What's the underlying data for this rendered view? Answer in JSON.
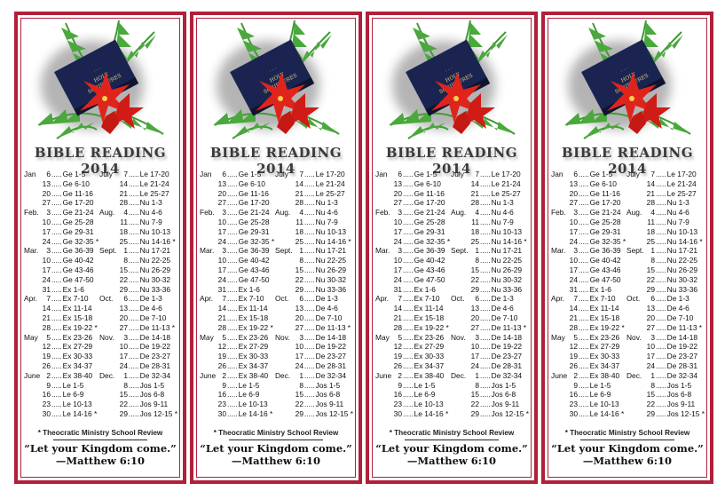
{
  "bookmark": {
    "title": "BIBLE  READING 2014",
    "book_cover_text": "HOLY SCRIPTURES",
    "left_column": [
      {
        "month": "Jan",
        "day": "6",
        "reading": "Ge 1-5"
      },
      {
        "month": "",
        "day": "13",
        "reading": "Ge 6-10"
      },
      {
        "month": "",
        "day": "20",
        "reading": "Ge 11-16"
      },
      {
        "month": "",
        "day": "27",
        "reading": "Ge 17-20"
      },
      {
        "month": "Feb.",
        "day": "3",
        "reading": "Ge 21-24"
      },
      {
        "month": "",
        "day": "10",
        "reading": "Ge 25-28"
      },
      {
        "month": "",
        "day": "17",
        "reading": "Ge 29-31"
      },
      {
        "month": "",
        "day": "24",
        "reading": "Ge 32-35 *"
      },
      {
        "month": "Mar.",
        "day": "3",
        "reading": "Ge 36-39"
      },
      {
        "month": "",
        "day": "10",
        "reading": "Ge 40-42"
      },
      {
        "month": "",
        "day": "17",
        "reading": "Ge 43-46"
      },
      {
        "month": "",
        "day": "24",
        "reading": "Ge 47-50"
      },
      {
        "month": "",
        "day": "31",
        "reading": "Ex 1-6"
      },
      {
        "month": "Apr.",
        "day": "7",
        "reading": "Ex 7-10"
      },
      {
        "month": "",
        "day": "14",
        "reading": "Ex 11-14"
      },
      {
        "month": "",
        "day": "21",
        "reading": "Ex 15-18"
      },
      {
        "month": "",
        "day": "28",
        "reading": "Ex 19-22 *"
      },
      {
        "month": "May",
        "day": "5",
        "reading": "Ex 23-26"
      },
      {
        "month": "",
        "day": "12",
        "reading": "Ex 27-29"
      },
      {
        "month": "",
        "day": "19",
        "reading": "Ex 30-33"
      },
      {
        "month": "",
        "day": "26",
        "reading": "Ex 34-37"
      },
      {
        "month": "June",
        "day": "2",
        "reading": "Ex 38-40"
      },
      {
        "month": "",
        "day": "9",
        "reading": "Le 1-5"
      },
      {
        "month": "",
        "day": "16",
        "reading": "Le 6-9"
      },
      {
        "month": "",
        "day": "23",
        "reading": "Le 10-13"
      },
      {
        "month": "",
        "day": "30",
        "reading": "Le 14-16 *"
      }
    ],
    "right_column": [
      {
        "month": "July",
        "day": "7",
        "reading": "Le 17-20"
      },
      {
        "month": "",
        "day": "14",
        "reading": "Le 21-24"
      },
      {
        "month": "",
        "day": "21",
        "reading": "Le 25-27"
      },
      {
        "month": "",
        "day": "28",
        "reading": "Nu 1-3"
      },
      {
        "month": "Aug.",
        "day": "4",
        "reading": "Nu 4-6"
      },
      {
        "month": "",
        "day": "11",
        "reading": "Nu 7-9"
      },
      {
        "month": "",
        "day": "18",
        "reading": "Nu 10-13"
      },
      {
        "month": "",
        "day": "25",
        "reading": "Nu 14-16 *"
      },
      {
        "month": "Sept.",
        "day": "1",
        "reading": "Nu 17-21"
      },
      {
        "month": "",
        "day": "8",
        "reading": "Nu 22-25"
      },
      {
        "month": "",
        "day": "15",
        "reading": "Nu 26-29"
      },
      {
        "month": "",
        "day": "22",
        "reading": "Nu 30-32"
      },
      {
        "month": "",
        "day": "29",
        "reading": "Nu 33-36"
      },
      {
        "month": "Oct.",
        "day": "6",
        "reading": "De 1-3"
      },
      {
        "month": "",
        "day": "13",
        "reading": "De 4-6"
      },
      {
        "month": "",
        "day": "20",
        "reading": "De 7-10"
      },
      {
        "month": "",
        "day": "27",
        "reading": "De 11-13 *"
      },
      {
        "month": "Nov.",
        "day": "3",
        "reading": "De 14-18"
      },
      {
        "month": "",
        "day": "10",
        "reading": "De 19-22"
      },
      {
        "month": "",
        "day": "17",
        "reading": "De 23-27"
      },
      {
        "month": "",
        "day": "24",
        "reading": "De 28-31"
      },
      {
        "month": "Dec.",
        "day": "1",
        "reading": "De 32-34"
      },
      {
        "month": "",
        "day": "8",
        "reading": "Jos 1-5"
      },
      {
        "month": "",
        "day": "15",
        "reading": "Jos 6-8"
      },
      {
        "month": "",
        "day": "22",
        "reading": "Jos 9-11"
      },
      {
        "month": "",
        "day": "29",
        "reading": "Jos 12-15 *"
      }
    ],
    "separator": ".....",
    "footnote": "* Theocratic Ministry School Review",
    "quote": "“Let your Kingdom come.”",
    "citation": "—Matthew 6:10"
  },
  "copies": 4,
  "colors": {
    "border": "#b0203a",
    "fern": "#3f9a35",
    "book": "#1b2450",
    "flower": "#e0241c"
  }
}
